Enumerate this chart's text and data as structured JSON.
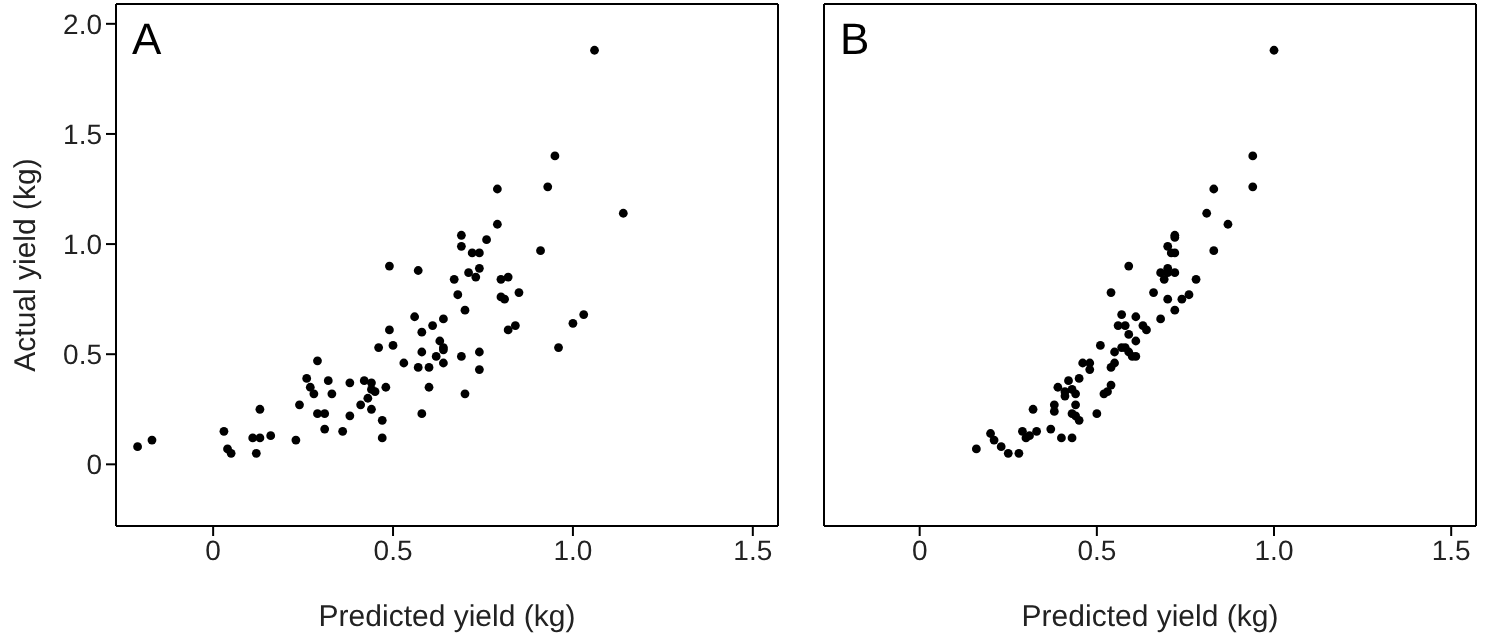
{
  "chart_data": [
    {
      "type": "scatter",
      "title": "A",
      "xlabel": "Predicted yield (kg)",
      "ylabel": "Actual yield (kg)",
      "marker": "circle",
      "color": "#000000",
      "x": [
        -0.21,
        -0.17,
        0.03,
        0.04,
        0.05,
        0.11,
        0.13,
        0.12,
        0.13,
        0.16,
        0.23,
        0.24,
        0.26,
        0.29,
        0.27,
        0.28,
        0.29,
        0.31,
        0.31,
        0.32,
        0.33,
        0.36,
        0.38,
        0.38,
        0.41,
        0.42,
        0.43,
        0.44,
        0.44,
        0.45,
        0.44,
        0.47,
        0.47,
        0.48,
        0.46,
        0.49,
        0.49,
        0.5,
        0.53,
        0.56,
        0.57,
        0.57,
        0.58,
        0.58,
        0.58,
        0.6,
        0.6,
        0.61,
        0.62,
        0.63,
        0.64,
        0.64,
        0.64,
        0.64,
        0.67,
        0.68,
        0.69,
        0.69,
        0.69,
        0.7,
        0.7,
        0.71,
        0.72,
        0.73,
        0.74,
        0.74,
        0.74,
        0.74,
        0.76,
        0.79,
        0.79,
        0.8,
        0.82,
        0.8,
        0.81,
        0.82,
        0.84,
        0.85,
        0.91,
        0.93,
        0.95,
        0.96,
        1.0,
        1.03,
        1.06,
        1.14
      ],
      "values": [
        0.08,
        0.11,
        0.15,
        0.07,
        0.05,
        0.12,
        0.12,
        0.05,
        0.25,
        0.13,
        0.11,
        0.27,
        0.39,
        0.47,
        0.35,
        0.32,
        0.23,
        0.23,
        0.16,
        0.38,
        0.32,
        0.15,
        0.22,
        0.37,
        0.27,
        0.38,
        0.3,
        0.34,
        0.37,
        0.33,
        0.25,
        0.2,
        0.12,
        0.35,
        0.53,
        0.61,
        0.9,
        0.54,
        0.46,
        0.67,
        0.88,
        0.44,
        0.51,
        0.6,
        0.23,
        0.35,
        0.44,
        0.63,
        0.49,
        0.56,
        0.66,
        0.53,
        0.52,
        0.46,
        0.84,
        0.77,
        0.99,
        1.04,
        0.49,
        0.7,
        0.32,
        0.87,
        0.96,
        0.85,
        0.96,
        0.89,
        0.43,
        0.51,
        1.02,
        1.25,
        1.09,
        0.84,
        0.85,
        0.76,
        0.75,
        0.61,
        0.63,
        0.78,
        0.97,
        1.26,
        1.4,
        0.53,
        0.64,
        0.68,
        1.88,
        1.14
      ],
      "xlim": [
        -0.27,
        1.57
      ],
      "ylim": [
        -0.28,
        2.09
      ],
      "xticks": [
        0,
        0.5,
        {
          "value": 1,
          "label": "1.0"
        },
        1.5
      ],
      "yticks": [
        0,
        0.5,
        {
          "value": 1,
          "label": "1.0"
        },
        1.5,
        {
          "value": 2,
          "label": "2.0"
        }
      ]
    },
    {
      "type": "scatter",
      "title": "B",
      "xlabel": "Predicted yield (kg)",
      "marker": "circle",
      "color": "#000000",
      "tick_labels": "x",
      "x": [
        0.16,
        0.2,
        0.21,
        0.23,
        0.25,
        0.28,
        0.29,
        0.3,
        0.31,
        0.33,
        0.32,
        0.37,
        0.38,
        0.38,
        0.39,
        0.4,
        0.43,
        0.41,
        0.41,
        0.42,
        0.43,
        0.44,
        0.44,
        0.43,
        0.44,
        0.45,
        0.45,
        0.46,
        0.48,
        0.48,
        0.5,
        0.51,
        0.52,
        0.53,
        0.54,
        0.54,
        0.55,
        0.54,
        0.55,
        0.56,
        0.57,
        0.58,
        0.57,
        0.58,
        0.59,
        0.6,
        0.61,
        0.59,
        0.59,
        0.61,
        0.61,
        0.63,
        0.64,
        0.66,
        0.68,
        0.68,
        0.69,
        0.7,
        0.7,
        0.7,
        0.7,
        0.71,
        0.72,
        0.72,
        0.72,
        0.72,
        0.72,
        0.74,
        0.76,
        0.78,
        0.81,
        0.83,
        0.83,
        0.87,
        0.94,
        0.94,
        1.0
      ],
      "values": [
        0.07,
        0.14,
        0.11,
        0.08,
        0.05,
        0.05,
        0.15,
        0.12,
        0.13,
        0.15,
        0.25,
        0.16,
        0.27,
        0.24,
        0.35,
        0.12,
        0.12,
        0.31,
        0.33,
        0.38,
        0.34,
        0.27,
        0.32,
        0.23,
        0.22,
        0.2,
        0.39,
        0.46,
        0.43,
        0.46,
        0.23,
        0.54,
        0.32,
        0.33,
        0.36,
        0.44,
        0.46,
        0.78,
        0.51,
        0.63,
        0.68,
        0.63,
        0.53,
        0.53,
        0.51,
        0.49,
        0.49,
        0.9,
        0.59,
        0.56,
        0.67,
        0.63,
        0.61,
        0.78,
        0.66,
        0.87,
        0.84,
        0.89,
        0.87,
        0.75,
        0.99,
        0.96,
        1.04,
        1.03,
        0.87,
        0.96,
        0.7,
        0.75,
        0.77,
        0.84,
        1.14,
        1.25,
        0.97,
        1.09,
        1.26,
        1.4,
        1.88
      ],
      "xlim": [
        -0.27,
        1.57
      ],
      "ylim": [
        -0.28,
        2.09
      ],
      "xticks": [
        0,
        0.5,
        {
          "value": 1,
          "label": "1.0"
        },
        1.5
      ],
      "yticks": [
        {
          "value": 0,
          "label": null
        },
        {
          "value": 0.5,
          "label": null
        },
        {
          "value": 1,
          "label": null
        },
        {
          "value": 1.5,
          "label": null
        },
        {
          "value": 2,
          "label": null
        }
      ]
    }
  ]
}
